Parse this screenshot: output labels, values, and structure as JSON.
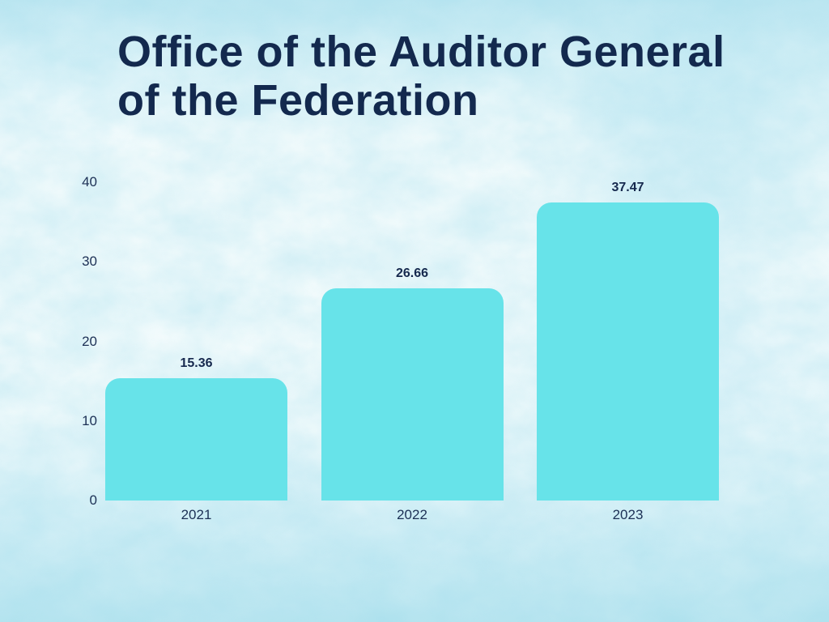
{
  "title": "Office of the Auditor General of the Federation",
  "colors": {
    "bar_fill": "#67e3e9",
    "title_text": "#13294e",
    "axis_text": "#1c3055",
    "background_base": "#f3fbfc",
    "watercolor_tint": "#8fd6e8"
  },
  "chart_data": {
    "type": "bar",
    "title": "Office of the Auditor General of the Federation",
    "categories": [
      "2021",
      "2022",
      "2023"
    ],
    "values": [
      15.36,
      26.66,
      37.47
    ],
    "value_labels": [
      "15.36",
      "26.66",
      "37.47"
    ],
    "xlabel": "",
    "ylabel": "",
    "ylim": [
      0,
      40
    ],
    "yticks": [
      0,
      10,
      20,
      30,
      40
    ],
    "grid": false,
    "legend": "none",
    "data_labels_position": "above-bar"
  }
}
